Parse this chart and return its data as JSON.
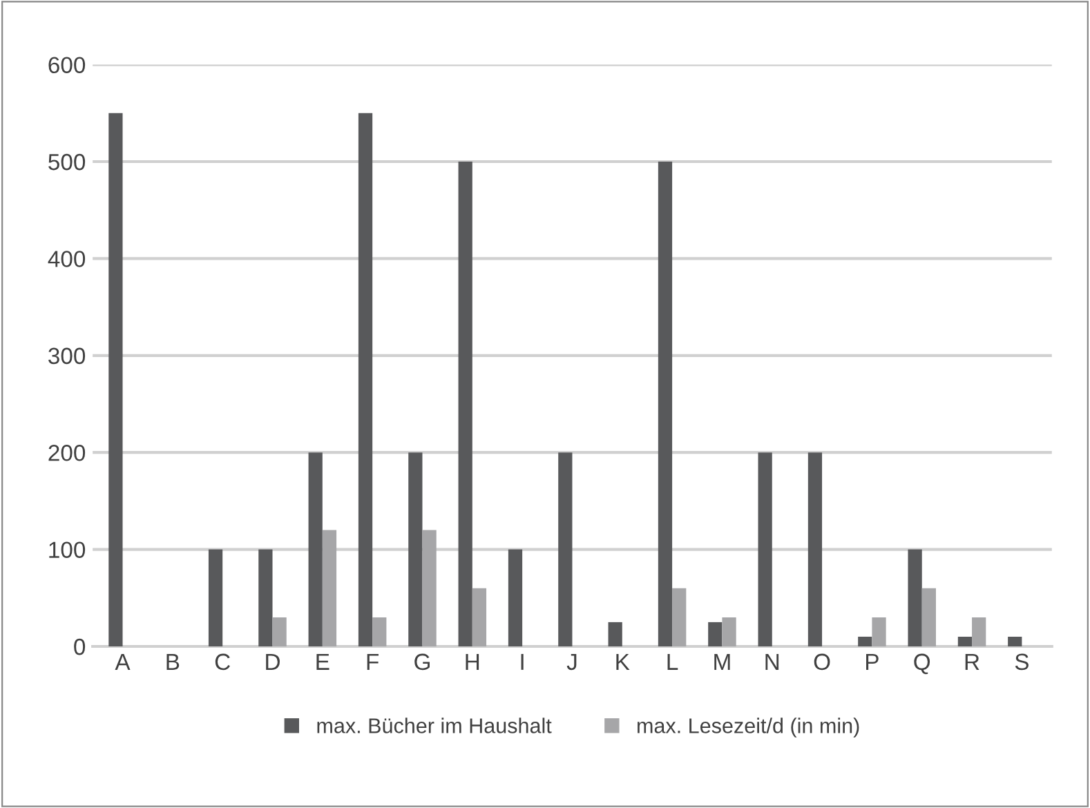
{
  "chart_data": {
    "type": "bar",
    "categories": [
      "A",
      "B",
      "C",
      "D",
      "E",
      "F",
      "G",
      "H",
      "I",
      "J",
      "K",
      "L",
      "M",
      "N",
      "O",
      "P",
      "Q",
      "R",
      "S"
    ],
    "series": [
      {
        "name": "max. Bücher im Haushalt",
        "color": "#58595b",
        "values": [
          550,
          0,
          100,
          100,
          200,
          550,
          200,
          500,
          100,
          200,
          25,
          500,
          25,
          200,
          200,
          10,
          100,
          10,
          10
        ]
      },
      {
        "name": "max. Lesezeit/d (in min)",
        "color": "#a6a6a8",
        "values": [
          0,
          0,
          0,
          30,
          120,
          30,
          120,
          60,
          0,
          0,
          0,
          60,
          30,
          0,
          0,
          30,
          60,
          30,
          0
        ]
      }
    ],
    "ylim": [
      0,
      600
    ],
    "yticks": [
      0,
      100,
      200,
      300,
      400,
      500,
      600
    ],
    "grid": "y",
    "legend": "bottom"
  }
}
